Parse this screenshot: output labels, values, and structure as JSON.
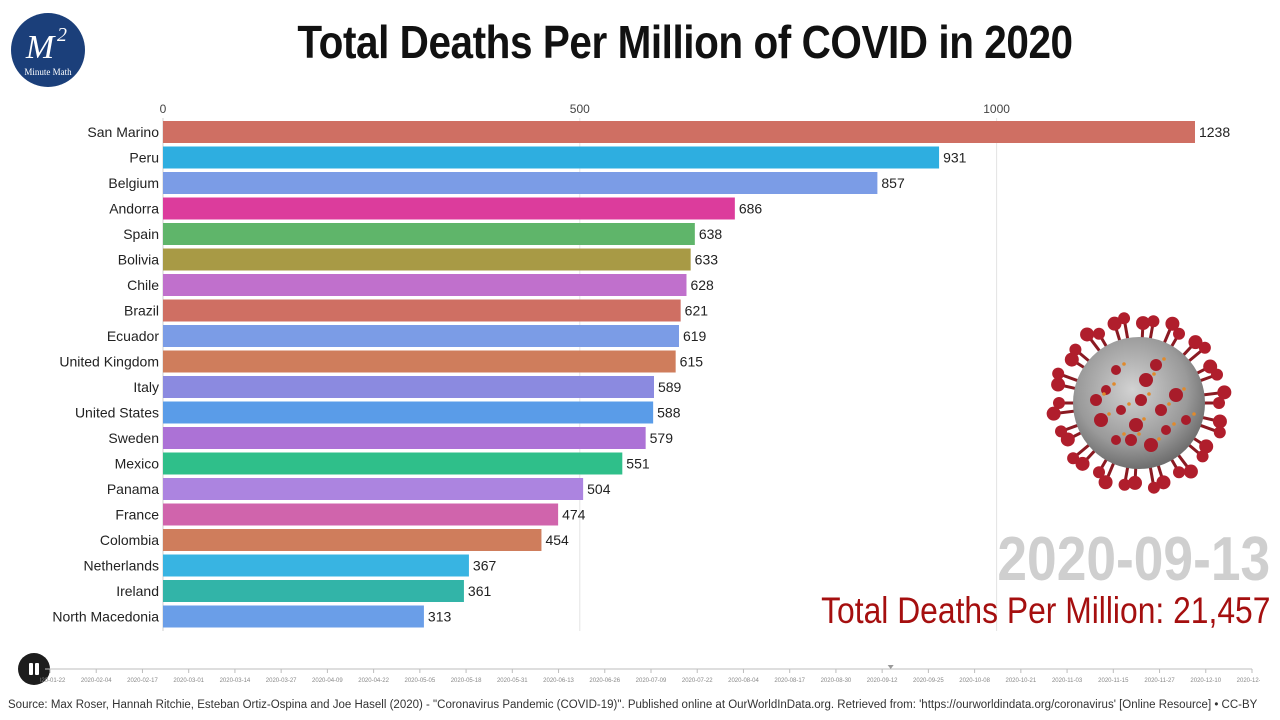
{
  "logo": {
    "text": "M",
    "superscript": "2",
    "subtitle": "Minute Math",
    "color": "#1b3f7a"
  },
  "title": "Total Deaths Per Million of COVID in 2020",
  "chart_data": {
    "type": "bar",
    "orientation": "horizontal",
    "title": "Total Deaths Per Million of COVID in 2020",
    "xlabel": "",
    "ylabel": "",
    "xlim": [
      0,
      1280
    ],
    "x_ticks": [
      0,
      500,
      1000
    ],
    "grid": true,
    "categories": [
      "San Marino",
      "Peru",
      "Belgium",
      "Andorra",
      "Spain",
      "Bolivia",
      "Chile",
      "Brazil",
      "Ecuador",
      "United Kingdom",
      "Italy",
      "United States",
      "Sweden",
      "Mexico",
      "Panama",
      "France",
      "Colombia",
      "Netherlands",
      "Ireland",
      "North Macedonia"
    ],
    "values": [
      1238,
      931,
      857,
      686,
      638,
      633,
      628,
      621,
      619,
      615,
      589,
      588,
      579,
      551,
      504,
      474,
      454,
      367,
      361,
      313
    ],
    "colors": [
      "#cf6f63",
      "#2eaee0",
      "#7b9ce6",
      "#dc3c9c",
      "#5fb56a",
      "#a89a45",
      "#c070cc",
      "#cf6f63",
      "#7b9ce6",
      "#cf7d5c",
      "#8b8ae0",
      "#5a9ce8",
      "#ac72d6",
      "#2fbf8a",
      "#ac84e0",
      "#d064ac",
      "#cf7d5c",
      "#38b4e2",
      "#32b4a8",
      "#6a9ee8"
    ]
  },
  "readout": {
    "date": "2020-09-13",
    "total_label": "Total Deaths Per Million:",
    "total_value": "21,457"
  },
  "timeline": {
    "dates": [
      "2020-01-22",
      "2020-02-04",
      "2020-02-17",
      "2020-03-01",
      "2020-03-14",
      "2020-03-27",
      "2020-04-09",
      "2020-04-22",
      "2020-05-05",
      "2020-05-18",
      "2020-05-31",
      "2020-06-13",
      "2020-06-26",
      "2020-07-09",
      "2020-07-22",
      "2020-08-04",
      "2020-08-17",
      "2020-08-30",
      "2020-09-12",
      "2020-09-25",
      "2020-10-08",
      "2020-10-21",
      "2020-11-03",
      "2020-11-15",
      "2020-11-27",
      "2020-12-10",
      "2020-12-23"
    ],
    "current_date": "2020-09-13"
  },
  "controls": {
    "state": "playing"
  },
  "source": "Source: Max Roser, Hannah Ritchie, Esteban Ortiz-Ospina and Joe Hasell (2020) - \"Coronavirus Pandemic (COVID-19)\". Published online at OurWorldInData.org. Retrieved from: 'https://ourworldindata.org/coronavirus' [Online Resource] • CC-BY"
}
